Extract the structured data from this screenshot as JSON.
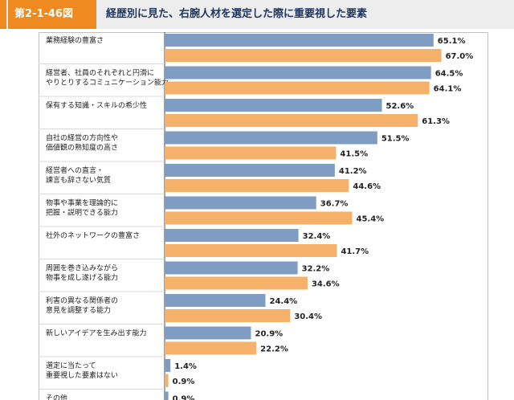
{
  "header": {
    "figure_number": "第2-1-46図",
    "title": "経歴別に見た、右腕人材を選定した際に重要視した要素"
  },
  "colors": {
    "series_1": "#7f9dc2",
    "series_2": "#f5b06a",
    "accent": "#ee8a1f"
  },
  "chart_data": {
    "type": "bar",
    "orientation": "horizontal",
    "title": "経歴別に見た、右腕人材を選定した際に重要視した要素",
    "xlabel": "",
    "ylabel": "",
    "xlim": [
      0,
      70
    ],
    "grid": false,
    "categories": [
      [
        "業務経験の豊富さ"
      ],
      [
        "経営者、社員のそれぞれと円滑に",
        "やりとりするコミュニケーション能力"
      ],
      [
        "保有する知識・スキルの希少性"
      ],
      [
        "自社の経営の方向性や",
        "価値観の熟知度の高さ"
      ],
      [
        "経営者への直言・",
        "諫言も辞さない気質"
      ],
      [
        "物事や事業を理論的に",
        "把握・説明できる能力"
      ],
      [
        "社外のネットワークの豊富さ"
      ],
      [
        "周囲を巻き込みながら",
        "物事を成し遂げる能力"
      ],
      [
        "利害の異なる関係者の",
        "意見を調整する能力"
      ],
      [
        "新しいアイデアを生み出す能力"
      ],
      [
        "選定に当たって",
        "重要視した要素はない"
      ],
      [
        "その他"
      ]
    ],
    "series": [
      {
        "values": [
          65.1,
          64.5,
          52.6,
          51.5,
          41.2,
          36.7,
          32.4,
          32.2,
          24.4,
          20.9,
          1.4,
          0.9
        ]
      },
      {
        "values": [
          67.0,
          64.1,
          61.3,
          41.5,
          44.6,
          45.4,
          41.7,
          34.6,
          30.4,
          22.2,
          0.9,
          null
        ]
      }
    ],
    "value_labels": [
      [
        "65.1%",
        "64.5%",
        "52.6%",
        "51.5%",
        "41.2%",
        "36.7%",
        "32.4%",
        "32.2%",
        "24.4%",
        "20.9%",
        "1.4%",
        "0.9%"
      ],
      [
        "67.0%",
        "64.1%",
        "61.3%",
        "41.5%",
        "44.6%",
        "45.4%",
        "41.7%",
        "34.6%",
        "30.4%",
        "22.2%",
        "0.9%",
        ""
      ]
    ]
  }
}
